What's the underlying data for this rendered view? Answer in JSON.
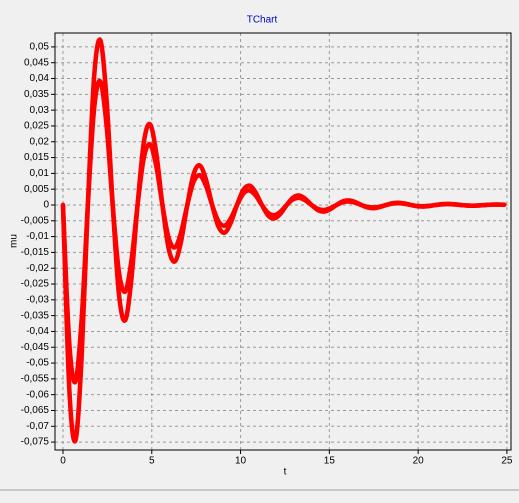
{
  "chart_data": {
    "type": "line",
    "title": "TChart",
    "x_label": "t",
    "y_label": "mu",
    "x": [
      0,
      0.35,
      0.7,
      1.05,
      1.4,
      1.75,
      2.1,
      2.45,
      2.8,
      3.15,
      3.5,
      3.85,
      4.2,
      4.55,
      4.9,
      5.25,
      5.6,
      5.95,
      6.3,
      6.65,
      7,
      7.35,
      7.7,
      8.05,
      8.4,
      8.75,
      9.1,
      9.45,
      9.8,
      10.15,
      10.5,
      10.85,
      11.2,
      11.55,
      11.9,
      12.25,
      12.6,
      12.95,
      13.3,
      13.65,
      14,
      14.35,
      14.7,
      15.05,
      15.4,
      15.75,
      16.1,
      16.45,
      16.8,
      17.15,
      17.5,
      17.85,
      18.2,
      18.55,
      18.9,
      19.25,
      19.6,
      19.95,
      20.3,
      20.65,
      21,
      21.35,
      21.7,
      22.05,
      22.4,
      22.75,
      23.1,
      23.45,
      23.8,
      24.15,
      24.5,
      24.85
    ],
    "series": [
      {
        "color": "#ff0000",
        "values": [
          0,
          -0.05762,
          -0.07453,
          -0.0482,
          0,
          0.04032,
          0.05215,
          0.03373,
          0,
          -0.02821,
          -0.03649,
          -0.0236,
          0,
          0.01974,
          0.02554,
          0.01652,
          0,
          -0.01382,
          -0.01787,
          -0.01155,
          0,
          0.00967,
          0.0125,
          0.00809,
          0,
          -0.00677,
          -0.00875,
          -0.00566,
          0,
          0.00473,
          0.00612,
          0.00396,
          0,
          -0.00331,
          -0.00428,
          -0.00277,
          0,
          0.00232,
          0.003,
          0.00194,
          0,
          -0.00162,
          -0.0021,
          -0.00136,
          0,
          0.00113,
          0.00147,
          0.00095,
          0,
          -0.00079,
          -0.00103,
          -0.00066,
          0,
          0.00056,
          0.00072,
          0.00047,
          0,
          -0.00039,
          -0.0005,
          -0.00032,
          0,
          0.00027,
          0.00035,
          0.00023,
          0,
          -0.00019,
          -0.00025,
          -0.00016,
          0,
          0.00013,
          0.00017,
          0.00011
        ]
      },
      {
        "color": "#ff0000",
        "values": [
          0,
          -0.04322,
          -0.0559,
          -0.03615,
          0,
          0.03024,
          0.03911,
          0.0253,
          0,
          -0.02116,
          -0.02737,
          -0.0177,
          0,
          0.01481,
          0.01916,
          0.01239,
          0,
          -0.01037,
          -0.0134,
          -0.00866,
          0,
          0.00725,
          0.00938,
          0.00607,
          0,
          -0.00508,
          -0.00656,
          -0.00425,
          0,
          0.00355,
          0.00459,
          0.00297,
          0,
          -0.00248,
          -0.00321,
          -0.00208,
          0,
          0.00174,
          0.00225,
          0.00146,
          0,
          -0.00122,
          -0.00158,
          -0.00102,
          0,
          0.00085,
          0.0011,
          0.00071,
          0,
          -0.00059,
          -0.00077,
          -0.0005,
          0,
          0.00042,
          0.00054,
          0.00035,
          0,
          -0.00029,
          -0.00038,
          -0.00024,
          0,
          0.0002,
          0.00026,
          0.00017,
          0,
          -0.00014,
          -0.00019,
          -0.00012,
          0,
          0.0001,
          0.00013,
          8e-05
        ]
      }
    ],
    "xlim": [
      -0.45,
      25.23
    ],
    "ylim": [
      -0.0775,
      0.0544
    ],
    "xticks": [
      0,
      5,
      10,
      15,
      20,
      25
    ],
    "yticks": [
      {
        "value": 0.05,
        "label": "0,05"
      },
      {
        "value": 0.045,
        "label": "0,045"
      },
      {
        "value": 0.04,
        "label": "0,04"
      },
      {
        "value": 0.035,
        "label": "0,035"
      },
      {
        "value": 0.03,
        "label": "0,03"
      },
      {
        "value": 0.025,
        "label": "0,025"
      },
      {
        "value": 0.02,
        "label": "0,02"
      },
      {
        "value": 0.015,
        "label": "0,015"
      },
      {
        "value": 0.01,
        "label": "0,01"
      },
      {
        "value": 0.005,
        "label": "0,005"
      },
      0,
      {
        "value": -0.005,
        "label": "-0,005"
      },
      {
        "value": -0.01,
        "label": "-0,01"
      },
      {
        "value": -0.015,
        "label": "-0,015"
      },
      {
        "value": -0.02,
        "label": "-0,02"
      },
      {
        "value": -0.025,
        "label": "-0,025"
      },
      {
        "value": -0.03,
        "label": "-0,03"
      },
      {
        "value": -0.035,
        "label": "-0,035"
      },
      {
        "value": -0.04,
        "label": "-0,04"
      },
      {
        "value": -0.045,
        "label": "-0,045"
      },
      {
        "value": -0.05,
        "label": "-0,05"
      },
      {
        "value": -0.055,
        "label": "-0,055"
      },
      {
        "value": -0.06,
        "label": "-0,06"
      },
      {
        "value": -0.065,
        "label": "-0,065"
      },
      {
        "value": -0.07,
        "label": "-0,07"
      },
      {
        "value": -0.075,
        "label": "-0,075"
      }
    ],
    "grid": true
  }
}
